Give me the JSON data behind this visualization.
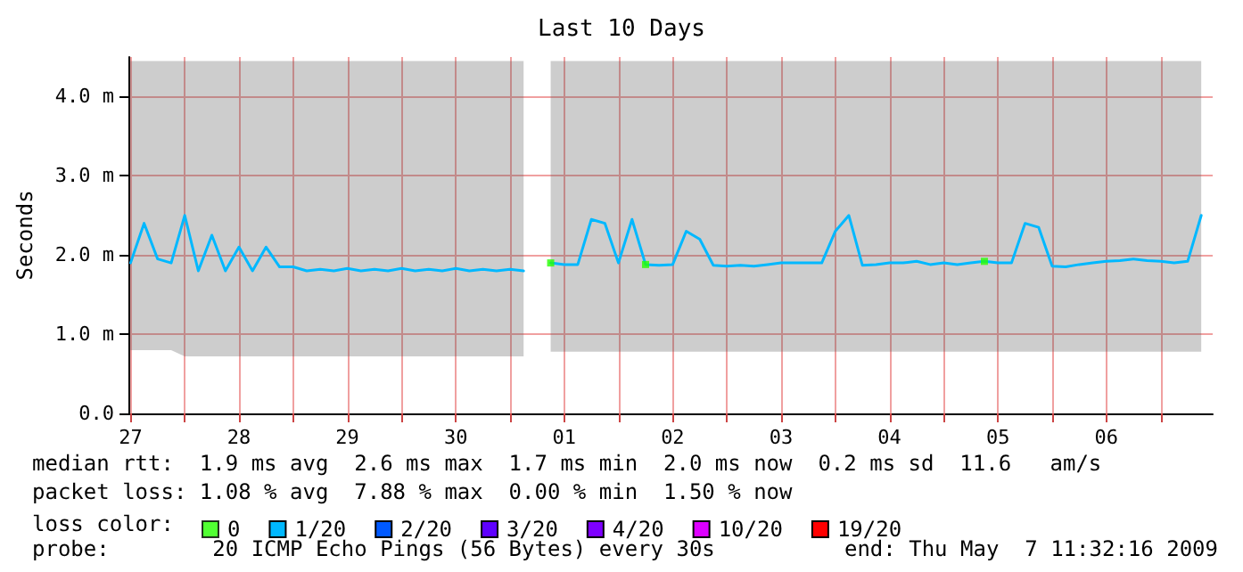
{
  "chart_data": {
    "type": "line",
    "title": "Last 10 Days",
    "ylabel": "Seconds",
    "legend_title": "loss color:",
    "legend": "bottom left",
    "grid": true,
    "marker": "none",
    "line_style": "solid",
    "xlim": [
      "2009-04-27T11:32",
      "2009-05-07T11:32"
    ],
    "xticks": [
      {
        "value": "2009-04-27T12:00",
        "label": "27"
      },
      {
        "value": "2009-04-28T00:00",
        "label": null
      },
      {
        "value": "2009-04-28T12:00",
        "label": "28"
      },
      {
        "value": "2009-04-29T00:00",
        "label": null
      },
      {
        "value": "2009-04-29T12:00",
        "label": "29"
      },
      {
        "value": "2009-04-30T00:00",
        "label": null
      },
      {
        "value": "2009-04-30T12:00",
        "label": "30"
      },
      {
        "value": "2009-05-01T00:00",
        "label": null
      },
      {
        "value": "2009-05-01T12:00",
        "label": "01"
      },
      {
        "value": "2009-05-02T00:00",
        "label": null
      },
      {
        "value": "2009-05-02T12:00",
        "label": "02"
      },
      {
        "value": "2009-05-03T00:00",
        "label": null
      },
      {
        "value": "2009-05-03T12:00",
        "label": "03"
      },
      {
        "value": "2009-05-04T00:00",
        "label": null
      },
      {
        "value": "2009-05-04T12:00",
        "label": "04"
      },
      {
        "value": "2009-05-05T00:00",
        "label": null
      },
      {
        "value": "2009-05-05T12:00",
        "label": "05"
      },
      {
        "value": "2009-05-06T00:00",
        "label": null
      },
      {
        "value": "2009-05-06T12:00",
        "label": "06"
      },
      {
        "value": "2009-05-07T00:00",
        "label": null
      }
    ],
    "ylim": [
      0,
      4.5
    ],
    "yticks": [
      {
        "value": 0,
        "label": "0.0"
      },
      {
        "value": 1,
        "label": "1.0 m"
      },
      {
        "value": 2,
        "label": "2.0 m"
      },
      {
        "value": 3,
        "label": "3.0 m"
      },
      {
        "value": 4,
        "label": "4.0 m"
      }
    ],
    "x": [
      "2009-04-27T12:00",
      "2009-04-27T15:00",
      "2009-04-27T18:00",
      "2009-04-27T21:00",
      "2009-04-28T00:00",
      "2009-04-28T03:00",
      "2009-04-28T06:00",
      "2009-04-28T09:00",
      "2009-04-28T12:00",
      "2009-04-28T15:00",
      "2009-04-28T18:00",
      "2009-04-28T21:00",
      "2009-04-29T00:00",
      "2009-04-29T03:00",
      "2009-04-29T06:00",
      "2009-04-29T09:00",
      "2009-04-29T12:00",
      "2009-04-29T15:00",
      "2009-04-29T18:00",
      "2009-04-29T21:00",
      "2009-04-30T00:00",
      "2009-04-30T03:00",
      "2009-04-30T06:00",
      "2009-04-30T09:00",
      "2009-04-30T12:00",
      "2009-04-30T15:00",
      "2009-04-30T18:00",
      "2009-04-30T21:00",
      "2009-05-01T00:00",
      "2009-05-01T03:00",
      "2009-05-01T06:00",
      "2009-05-01T09:00",
      "2009-05-01T12:00",
      "2009-05-01T15:00",
      "2009-05-01T18:00",
      "2009-05-01T21:00",
      "2009-05-02T00:00",
      "2009-05-02T03:00",
      "2009-05-02T06:00",
      "2009-05-02T09:00",
      "2009-05-02T12:00",
      "2009-05-02T15:00",
      "2009-05-02T18:00",
      "2009-05-02T21:00",
      "2009-05-03T00:00",
      "2009-05-03T03:00",
      "2009-05-03T06:00",
      "2009-05-03T09:00",
      "2009-05-03T12:00",
      "2009-05-03T15:00",
      "2009-05-03T18:00",
      "2009-05-03T21:00",
      "2009-05-04T00:00",
      "2009-05-04T03:00",
      "2009-05-04T06:00",
      "2009-05-04T09:00",
      "2009-05-04T12:00",
      "2009-05-04T15:00",
      "2009-05-04T18:00",
      "2009-05-04T21:00",
      "2009-05-05T00:00",
      "2009-05-05T03:00",
      "2009-05-05T06:00",
      "2009-05-05T09:00",
      "2009-05-05T12:00",
      "2009-05-05T15:00",
      "2009-05-05T18:00",
      "2009-05-05T21:00",
      "2009-05-06T00:00",
      "2009-05-06T03:00",
      "2009-05-06T06:00",
      "2009-05-06T09:00",
      "2009-05-06T12:00",
      "2009-05-06T15:00",
      "2009-05-06T18:00",
      "2009-05-06T21:00",
      "2009-05-07T00:00",
      "2009-05-07T03:00",
      "2009-05-07T06:00",
      "2009-05-07T09:00"
    ],
    "series": [
      {
        "name": "0",
        "color": "#26ff00",
        "type": "scatter",
        "marker": "square",
        "x": [
          "2009-05-01T09:00",
          "2009-05-02T06:00",
          "2009-05-05T09:00"
        ],
        "values": [
          1.9,
          1.88,
          1.92
        ]
      },
      {
        "name": "1/20",
        "color": "#00b8ff",
        "values": [
          1.9,
          2.4,
          1.95,
          1.9,
          2.5,
          1.8,
          2.25,
          1.8,
          2.1,
          1.8,
          2.1,
          1.85,
          1.85,
          1.8,
          1.82,
          1.8,
          1.83,
          1.8,
          1.82,
          1.8,
          1.83,
          1.8,
          1.82,
          1.8,
          1.83,
          1.8,
          1.82,
          1.8,
          1.82,
          1.8,
          null,
          1.9,
          1.88,
          1.88,
          2.45,
          2.4,
          1.9,
          2.45,
          1.88,
          1.87,
          1.88,
          2.3,
          2.2,
          1.87,
          1.86,
          1.87,
          1.86,
          1.88,
          1.9,
          1.9,
          1.9,
          1.9,
          2.3,
          2.5,
          1.87,
          1.88,
          1.9,
          1.9,
          1.92,
          1.88,
          1.9,
          1.88,
          1.9,
          1.92,
          1.9,
          1.9,
          2.4,
          2.35,
          1.86,
          1.85,
          1.88,
          1.9,
          1.92,
          1.93,
          1.95,
          1.93,
          1.92,
          1.9,
          1.92,
          2.5
        ],
        "lower": [
          0.8,
          0.8,
          0.8,
          0.8,
          0.72,
          0.72,
          0.72,
          0.72,
          0.72,
          0.72,
          0.72,
          0.72,
          0.72,
          0.72,
          0.72,
          0.72,
          0.72,
          0.72,
          0.72,
          0.72,
          0.72,
          0.72,
          0.72,
          0.72,
          0.72,
          0.72,
          0.72,
          0.72,
          0.72,
          0.72,
          null,
          0.78,
          0.78,
          0.78,
          0.78,
          0.78,
          0.78,
          0.78,
          0.78,
          0.78,
          0.78,
          0.78,
          0.78,
          0.78,
          0.78,
          0.78,
          0.78,
          0.78,
          0.78,
          0.78,
          0.78,
          0.78,
          0.78,
          0.78,
          0.78,
          0.78,
          0.78,
          0.78,
          0.78,
          0.78,
          0.78,
          0.78,
          0.78,
          0.78,
          0.78,
          0.78,
          0.78,
          0.78,
          0.78,
          0.78,
          0.78,
          0.78,
          0.78,
          0.78,
          0.78,
          0.78,
          0.78,
          0.78,
          0.78,
          0.78
        ],
        "upper": [
          4.45,
          4.45,
          4.45,
          4.45,
          4.45,
          4.45,
          4.45,
          4.45,
          4.45,
          4.45,
          4.45,
          4.45,
          4.45,
          4.45,
          4.45,
          4.45,
          4.45,
          4.45,
          4.45,
          4.45,
          4.45,
          4.45,
          4.45,
          4.45,
          4.45,
          4.45,
          4.45,
          4.45,
          4.45,
          4.45,
          null,
          4.45,
          4.45,
          4.45,
          4.45,
          4.45,
          4.45,
          4.45,
          4.45,
          4.45,
          4.45,
          4.45,
          4.45,
          4.45,
          4.45,
          4.45,
          4.45,
          4.45,
          4.45,
          4.45,
          4.45,
          4.45,
          4.45,
          4.45,
          4.45,
          4.45,
          4.45,
          4.45,
          4.45,
          4.45,
          4.45,
          4.45,
          4.45,
          4.45,
          4.45,
          4.45,
          4.45,
          4.45,
          4.45,
          4.45,
          4.45,
          4.45,
          4.45,
          4.45,
          4.45,
          4.45,
          4.45,
          4.45,
          4.45,
          4.45
        ]
      },
      {
        "name": "2/20",
        "color": "#0059ff",
        "values": [
          null,
          null,
          null,
          null,
          null,
          null,
          null,
          null,
          null,
          null,
          null,
          null,
          null,
          null,
          null,
          null,
          null,
          null,
          null,
          null,
          null,
          null,
          null,
          null,
          null,
          null,
          null,
          null,
          null,
          null,
          null,
          null,
          null,
          null,
          null,
          null,
          null,
          null,
          null,
          null,
          null,
          null,
          null,
          null,
          null,
          null,
          null,
          null,
          null,
          null,
          null,
          null,
          null,
          null,
          null,
          null,
          null,
          null,
          null,
          null,
          null,
          null,
          null,
          null,
          null,
          null,
          null,
          null,
          null,
          null,
          null,
          null,
          null,
          null,
          null,
          null,
          null,
          null,
          null,
          null
        ]
      },
      {
        "name": "3/20",
        "color": "#5e00ff",
        "values": [
          null,
          null,
          null,
          null,
          null,
          null,
          null,
          null,
          null,
          null,
          null,
          null,
          null,
          null,
          null,
          null,
          null,
          null,
          null,
          null,
          null,
          null,
          null,
          null,
          null,
          null,
          null,
          null,
          null,
          null,
          null,
          null,
          null,
          null,
          null,
          null,
          null,
          null,
          null,
          null,
          null,
          null,
          null,
          null,
          null,
          null,
          null,
          null,
          null,
          null,
          null,
          null,
          null,
          null,
          null,
          null,
          null,
          null,
          null,
          null,
          null,
          null,
          null,
          null,
          null,
          null,
          null,
          null,
          null,
          null,
          null,
          null,
          null,
          null,
          null,
          null,
          null,
          null,
          null,
          null
        ]
      },
      {
        "name": "4/20",
        "color": "#7e00ff",
        "values": [
          null,
          null,
          null,
          null,
          null,
          null,
          null,
          null,
          null,
          null,
          null,
          null,
          null,
          null,
          null,
          null,
          null,
          null,
          null,
          null,
          null,
          null,
          null,
          null,
          null,
          null,
          null,
          null,
          null,
          null,
          null,
          null,
          null,
          null,
          null,
          null,
          null,
          null,
          null,
          null,
          null,
          null,
          null,
          null,
          null,
          null,
          null,
          null,
          null,
          null,
          null,
          null,
          null,
          null,
          null,
          null,
          null,
          null,
          null,
          null,
          null,
          null,
          null,
          null,
          null,
          null,
          null,
          null,
          null,
          null,
          null,
          null,
          null,
          null,
          null,
          null,
          null,
          null,
          null,
          null
        ]
      },
      {
        "name": "10/20",
        "color": "#dd00ff",
        "values": [
          null,
          null,
          null,
          null,
          null,
          null,
          null,
          null,
          null,
          null,
          null,
          null,
          null,
          null,
          null,
          null,
          null,
          null,
          null,
          null,
          null,
          null,
          null,
          null,
          null,
          null,
          null,
          null,
          null,
          null,
          null,
          null,
          null,
          null,
          null,
          null,
          null,
          null,
          null,
          null,
          null,
          null,
          null,
          null,
          null,
          null,
          null,
          null,
          null,
          null,
          null,
          null,
          null,
          null,
          null,
          null,
          null,
          null,
          null,
          null,
          null,
          null,
          null,
          null,
          null,
          null,
          null,
          null,
          null,
          null,
          null,
          null,
          null,
          null,
          null,
          null,
          null,
          null,
          null,
          null
        ]
      },
      {
        "name": "19/20",
        "color": "#ff0000",
        "values": [
          null,
          null,
          null,
          null,
          null,
          null,
          null,
          null,
          null,
          null,
          null,
          null,
          null,
          null,
          null,
          null,
          null,
          null,
          null,
          null,
          null,
          null,
          null,
          null,
          null,
          null,
          null,
          null,
          null,
          null,
          null,
          null,
          null,
          null,
          null,
          null,
          null,
          null,
          null,
          null,
          null,
          null,
          null,
          null,
          null,
          null,
          null,
          null,
          null,
          null,
          null,
          null,
          null,
          null,
          null,
          null,
          null,
          null,
          null,
          null,
          null,
          null,
          null,
          null,
          null,
          null,
          null,
          null,
          null,
          null,
          null,
          null,
          null,
          null,
          null,
          null,
          null,
          null,
          null,
          null
        ]
      }
    ],
    "annotations": [
      "median rtt:  1.9 ms avg  2.6 ms max  1.7 ms min  2.0 ms now  0.2 ms sd  11.6   am/s",
      "packet loss: 1.08 % avg  7.88 % max  0.00 % min  1.50 % now",
      "probe:        20 ICMP Echo Pings (56 Bytes) every 30s",
      "end: Thu May  7 11:32:16 2009"
    ]
  }
}
